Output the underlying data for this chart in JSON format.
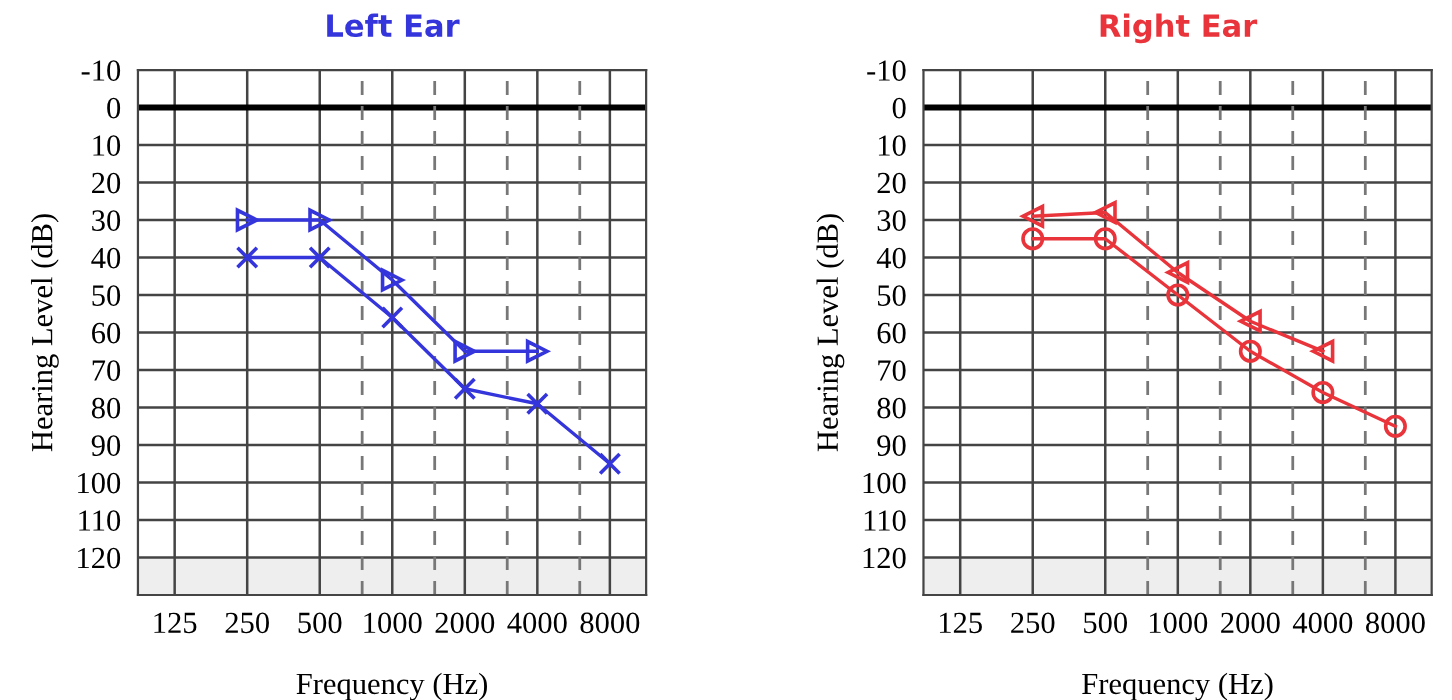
{
  "chart_data": [
    {
      "type": "line",
      "title": "Left Ear",
      "xlabel": "Frequency (Hz)",
      "ylabel": "Hearing Level (dB)",
      "log": "x",
      "xlim": [
        88,
        11314
      ],
      "xticks": [
        125,
        250,
        500,
        1000,
        2000,
        4000,
        8000
      ],
      "ylim": [
        130,
        -10
      ],
      "yticks": [
        -10,
        0,
        10,
        20,
        30,
        40,
        50,
        60,
        70,
        80,
        90,
        100,
        110,
        120
      ],
      "grid": true,
      "legend": false,
      "series": [
        {
          "color": "#3535dc",
          "marker": "cross",
          "x": [
            250,
            500,
            1000,
            2000,
            4000,
            8000
          ],
          "values": [
            40,
            40,
            56,
            75,
            79,
            95
          ]
        },
        {
          "color": "#3535dc",
          "marker": "triangle",
          "x": [
            250,
            500,
            1000,
            2000,
            4000
          ],
          "values": [
            30,
            30,
            46,
            65,
            65
          ]
        }
      ],
      "ref_lines": [
        {
          "axis": "y",
          "value": 0,
          "color": "#000000",
          "line_style": "solid"
        },
        {
          "axis": "x",
          "value": 750,
          "color": "#777777",
          "line_style": "dashed"
        },
        {
          "axis": "x",
          "value": 1500,
          "color": "#777777",
          "line_style": "dashed"
        },
        {
          "axis": "x",
          "value": 3000,
          "color": "#777777",
          "line_style": "dashed"
        },
        {
          "axis": "x",
          "value": 6000,
          "color": "#777777",
          "line_style": "dashed"
        }
      ],
      "bands": [
        {
          "axis": "y",
          "from": 120,
          "to": 130,
          "color": "#eeeeee"
        }
      ]
    },
    {
      "type": "line",
      "title": "Right Ear",
      "xlabel": "Frequency (Hz)",
      "ylabel": "Hearing Level (dB)",
      "log": "x",
      "xlim": [
        88,
        11314
      ],
      "xticks": [
        125,
        250,
        500,
        1000,
        2000,
        4000,
        8000
      ],
      "ylim": [
        130,
        -10
      ],
      "yticks": [
        -10,
        0,
        10,
        20,
        30,
        40,
        50,
        60,
        70,
        80,
        90,
        100,
        110,
        120
      ],
      "grid": true,
      "legend": false,
      "series": [
        {
          "color": "#e8343a",
          "marker": "circle",
          "x": [
            250,
            500,
            1000,
            2000,
            4000,
            8000
          ],
          "values": [
            35,
            35,
            50,
            65,
            76,
            85
          ]
        },
        {
          "color": "#e8343a",
          "marker": "triangle",
          "x": [
            250,
            500,
            1000,
            2000,
            4000
          ],
          "values": [
            29,
            28,
            44,
            57,
            65
          ]
        }
      ],
      "ref_lines": [
        {
          "axis": "y",
          "value": 0,
          "color": "#000000",
          "line_style": "solid"
        },
        {
          "axis": "x",
          "value": 750,
          "color": "#777777",
          "line_style": "dashed"
        },
        {
          "axis": "x",
          "value": 1500,
          "color": "#777777",
          "line_style": "dashed"
        },
        {
          "axis": "x",
          "value": 3000,
          "color": "#777777",
          "line_style": "dashed"
        },
        {
          "axis": "x",
          "value": 6000,
          "color": "#777777",
          "line_style": "dashed"
        }
      ],
      "bands": [
        {
          "axis": "y",
          "from": 120,
          "to": 130,
          "color": "#eeeeee"
        }
      ]
    }
  ]
}
